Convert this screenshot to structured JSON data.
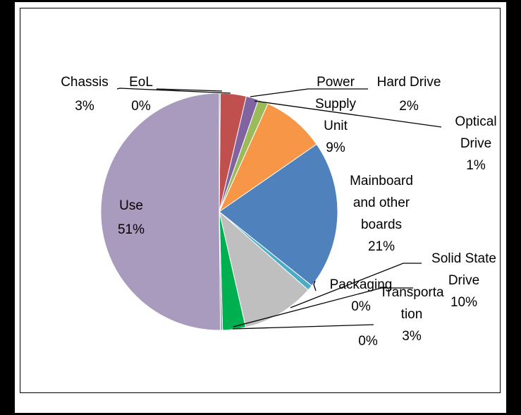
{
  "chart_data": {
    "type": "pie",
    "slices": [
      {
        "name": "Use",
        "value": 51,
        "color": "#a99bbd",
        "label_lines": [
          "Use",
          "51%"
        ]
      },
      {
        "name": "Chassis",
        "value": 3,
        "color": "#c0504d",
        "label_lines": [
          "Chassis",
          "3%"
        ]
      },
      {
        "name": "EoL",
        "value": 0,
        "color": "#4f81bd",
        "label_lines": [
          "EoL",
          "0%"
        ]
      },
      {
        "name": "Hard Drive",
        "value": 2,
        "color": "#8064a2",
        "label_lines": [
          "Hard Drive",
          "2%"
        ]
      },
      {
        "name": "Optical Drive",
        "value": 1,
        "color": "#9bbb59",
        "label_lines": [
          "Optical",
          "Drive",
          "1%"
        ]
      },
      {
        "name": "Power Supply Unit",
        "value": 9,
        "color": "#f79646",
        "label_lines": [
          "Power",
          "Supply",
          "Unit",
          "9%"
        ]
      },
      {
        "name": "Mainboard and other boards",
        "value": 21,
        "color": "#4f81bd",
        "label_lines": [
          "Mainboard",
          "and other",
          "boards",
          "21%"
        ]
      },
      {
        "name": "Packaging",
        "value": 0,
        "color": "#4bacc6",
        "label_lines": [
          "Packaging",
          "0%"
        ]
      },
      {
        "name": "Solid State Drive",
        "value": 10,
        "color": "#bfbfbf",
        "label_lines": [
          "Solid State",
          "Drive",
          "10%"
        ]
      },
      {
        "name": "Transportation",
        "value": 3,
        "color": "#00b050",
        "label_lines": [
          "Transporta",
          "tion",
          "3%"
        ]
      },
      {
        "name": "unlabeled",
        "value": 0,
        "color": "#a99bbd",
        "label_lines": [
          "0%"
        ]
      }
    ]
  }
}
